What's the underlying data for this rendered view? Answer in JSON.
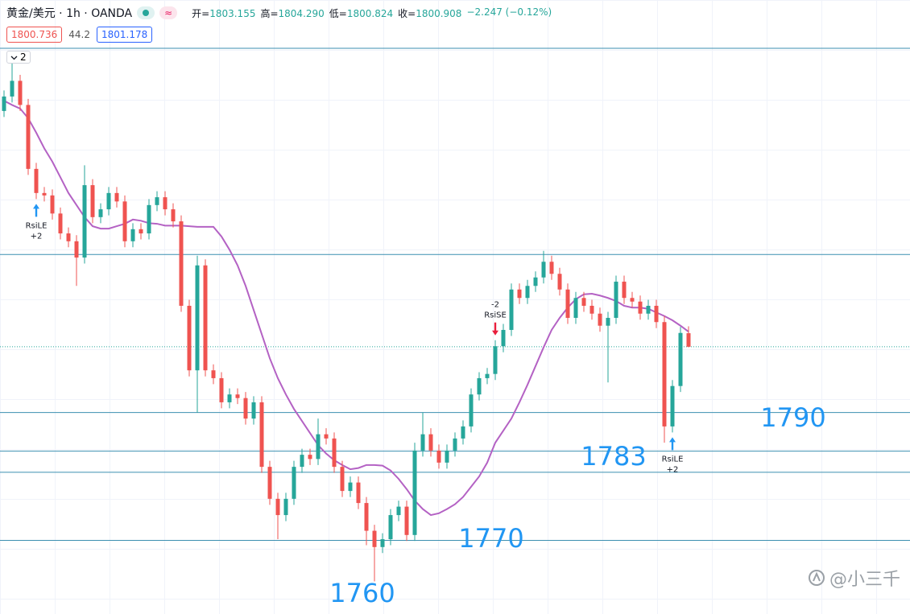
{
  "header": {
    "symbol": "黄金/美元 · 1h · OANDA",
    "badge": "≈",
    "ohlc": [
      {
        "label": "开=",
        "value": "1803.155"
      },
      {
        "label": "高=",
        "value": "1804.290"
      },
      {
        "label": "低=",
        "value": "1800.824"
      },
      {
        "label": "收=",
        "value": "1800.908"
      }
    ],
    "change": "−2.247 (−0.12%)",
    "bid": "1800.736",
    "spread": "44.2",
    "ask": "1801.178",
    "collapsed": "2"
  },
  "watermark": "@小三千",
  "chart_data": {
    "type": "candlestick",
    "up_color": "#26a69a",
    "down_color": "#ef5350",
    "ylim": [
      1756.6,
      1858.4
    ],
    "open": [
      1840.0,
      1842.4,
      1845.0,
      1841.0,
      1830.4,
      1826.4,
      1826.0,
      1823.0,
      1819.7,
      1818.4,
      1815.7,
      1827.7,
      1822.4,
      1823.7,
      1826.4,
      1825.0,
      1818.4,
      1820.4,
      1819.7,
      1824.4,
      1825.7,
      1823.7,
      1821.7,
      1807.7,
      1797.0,
      1814.4,
      1797.0,
      1795.7,
      1791.7,
      1793.0,
      1792.4,
      1789.0,
      1791.7,
      1781.0,
      1775.7,
      1773.0,
      1775.7,
      1781.0,
      1783.0,
      1782.3,
      1786.4,
      1785.7,
      1781.0,
      1777.0,
      1778.4,
      1775.0,
      1770.4,
      1767.7,
      1769.0,
      1773.0,
      1774.4,
      1769.7,
      1783.7,
      1786.4,
      1783.7,
      1781.7,
      1783.7,
      1785.7,
      1787.7,
      1793.0,
      1795.7,
      1796.4,
      1801.0,
      1803.7,
      1810.4,
      1809.0,
      1811.0,
      1812.4,
      1815.0,
      1813.0,
      1810.4,
      1805.7,
      1809.0,
      1807.7,
      1806.4,
      1804.4,
      1805.7,
      1811.7,
      1809.0,
      1808.4,
      1806.4,
      1807.7,
      1805.0,
      1787.7,
      1794.4,
      1803.155
    ],
    "high": [
      1843.4,
      1848.0,
      1846.0,
      1842.0,
      1831.4,
      1827.4,
      1827.0,
      1824.0,
      1820.7,
      1819.4,
      1831.0,
      1828.7,
      1824.7,
      1827.4,
      1827.4,
      1826.0,
      1821.4,
      1821.4,
      1825.4,
      1826.7,
      1826.7,
      1824.7,
      1822.7,
      1808.7,
      1816.0,
      1815.4,
      1798.0,
      1796.7,
      1794.0,
      1794.0,
      1793.4,
      1792.7,
      1792.7,
      1782.0,
      1776.7,
      1776.7,
      1782.0,
      1784.0,
      1784.0,
      1789.0,
      1787.4,
      1786.7,
      1782.0,
      1779.4,
      1779.4,
      1776.0,
      1771.4,
      1770.0,
      1774.0,
      1775.4,
      1775.4,
      1785.0,
      1790.0,
      1787.4,
      1784.7,
      1784.7,
      1786.7,
      1788.7,
      1794.0,
      1796.7,
      1797.4,
      1802.0,
      1804.7,
      1811.4,
      1811.4,
      1812.0,
      1813.4,
      1816.8,
      1816.0,
      1814.0,
      1811.4,
      1810.0,
      1810.0,
      1808.7,
      1807.4,
      1806.7,
      1812.7,
      1812.7,
      1810.0,
      1809.4,
      1808.7,
      1808.7,
      1806.0,
      1795.4,
      1804.2,
      1804.29
    ],
    "low": [
      1839.0,
      1841.4,
      1840.0,
      1829.4,
      1825.4,
      1825.0,
      1822.0,
      1818.7,
      1817.4,
      1811.0,
      1814.7,
      1821.4,
      1821.4,
      1822.7,
      1824.0,
      1817.4,
      1817.4,
      1818.7,
      1818.7,
      1823.4,
      1822.7,
      1820.7,
      1806.7,
      1796.0,
      1790.0,
      1796.0,
      1794.7,
      1790.7,
      1790.7,
      1791.4,
      1788.0,
      1788.0,
      1780.0,
      1774.7,
      1769.0,
      1772.0,
      1774.7,
      1780.0,
      1781.3,
      1781.3,
      1784.7,
      1780.0,
      1776.0,
      1776.0,
      1774.0,
      1768.0,
      1762.0,
      1766.7,
      1768.0,
      1772.0,
      1768.7,
      1768.7,
      1782.7,
      1782.7,
      1780.7,
      1780.7,
      1782.7,
      1784.7,
      1786.7,
      1792.0,
      1794.7,
      1795.4,
      1800.0,
      1802.7,
      1808.0,
      1808.0,
      1810.0,
      1811.4,
      1812.0,
      1809.4,
      1804.7,
      1804.7,
      1806.7,
      1805.4,
      1803.4,
      1795.0,
      1804.7,
      1808.0,
      1807.4,
      1805.4,
      1805.4,
      1804.0,
      1785.0,
      1786.7,
      1793.4,
      1800.824
    ],
    "close": [
      1842.4,
      1845.0,
      1841.0,
      1830.4,
      1826.4,
      1826.0,
      1823.0,
      1819.7,
      1818.4,
      1815.7,
      1827.7,
      1822.4,
      1823.7,
      1826.4,
      1825.0,
      1818.4,
      1820.4,
      1819.7,
      1824.4,
      1825.7,
      1823.7,
      1821.7,
      1807.7,
      1797.0,
      1814.4,
      1797.0,
      1795.7,
      1791.7,
      1793.0,
      1792.4,
      1789.0,
      1791.7,
      1781.0,
      1775.7,
      1773.0,
      1775.7,
      1781.0,
      1783.0,
      1782.3,
      1786.4,
      1785.7,
      1781.0,
      1777.0,
      1778.4,
      1775.0,
      1770.4,
      1767.7,
      1769.0,
      1773.0,
      1774.4,
      1769.7,
      1783.7,
      1786.4,
      1783.7,
      1781.7,
      1783.7,
      1785.7,
      1787.7,
      1793.0,
      1795.7,
      1796.4,
      1801.0,
      1803.7,
      1810.4,
      1809.0,
      1811.0,
      1812.4,
      1815.0,
      1813.0,
      1810.4,
      1805.7,
      1809.0,
      1807.7,
      1806.4,
      1804.4,
      1805.7,
      1811.7,
      1809.0,
      1808.4,
      1806.4,
      1807.7,
      1805.0,
      1787.7,
      1794.4,
      1803.2,
      1800.908
    ],
    "ma": {
      "color": "#b462c4",
      "values": [
        1841.7,
        1841.0,
        1840.4,
        1838.8,
        1836.4,
        1833.8,
        1831.6,
        1829.0,
        1826.4,
        1824.4,
        1822.4,
        1820.9,
        1820.5,
        1820.5,
        1820.9,
        1821.3,
        1822.0,
        1821.8,
        1821.4,
        1821.3,
        1821.0,
        1821.0,
        1821.0,
        1820.9,
        1820.8,
        1820.8,
        1820.8,
        1819.2,
        1817.0,
        1814.4,
        1811.0,
        1807.0,
        1803.0,
        1799.0,
        1795.7,
        1793.0,
        1790.6,
        1788.6,
        1786.6,
        1784.6,
        1783.2,
        1782.1,
        1781.3,
        1780.6,
        1780.8,
        1781.3,
        1781.3,
        1781.2,
        1780.4,
        1779.0,
        1777.3,
        1775.4,
        1774.0,
        1773.0,
        1773.3,
        1774.0,
        1774.8,
        1776.0,
        1777.7,
        1779.4,
        1781.7,
        1785.0,
        1787.0,
        1789.0,
        1791.7,
        1794.6,
        1797.7,
        1800.8,
        1803.7,
        1805.7,
        1807.4,
        1808.8,
        1809.6,
        1809.7,
        1809.4,
        1809.0,
        1808.5,
        1807.7,
        1807.4,
        1807.4,
        1807.2,
        1806.6,
        1806.0,
        1805.3,
        1804.4,
        1803.4
      ]
    },
    "levels": {
      "color": "#3b8fb0",
      "values": [
        1850.4,
        1816.2,
        1790.0,
        1783.6,
        1780.1,
        1768.8
      ]
    },
    "last_price_line": true,
    "signals": [
      {
        "index": 4,
        "side": "long",
        "name": "RsiLE",
        "qty": "+2"
      },
      {
        "index": 61,
        "side": "short",
        "name": "RsiSE",
        "qty": "-2"
      },
      {
        "index": 83,
        "side": "long",
        "name": "RsiLE",
        "qty": "+2"
      }
    ],
    "annotations": {
      "color": "#2196f3",
      "texts": [
        "1790",
        "1783",
        "1770",
        "1760"
      ]
    }
  }
}
